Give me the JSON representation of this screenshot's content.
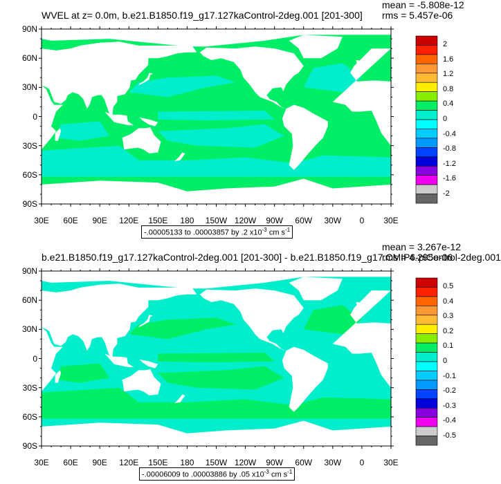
{
  "panels": [
    {
      "title": "WVEL at z=   0.0m, b.e21.B1850.f19_g17.127kaControl-2deg.001 [201-300]",
      "mean": "mean = -5.808e-12",
      "rms": "rms = 5.457e-06",
      "range_text": "-.00005133 to .00003857 by .2 x10",
      "range_exp": "-3",
      "range_unit": " cm s",
      "range_unit_exp": "-1",
      "colorbar_labels": [
        "2",
        "1.6",
        "1.2",
        "0.8",
        "0.4",
        "0",
        "-0.4",
        "-0.8",
        "-1.2",
        "-1.6",
        "-2"
      ],
      "ocean_primary": "#00ee66",
      "ocean_secondary": "#00eecc"
    },
    {
      "title": "b.e21.B1850.f19_g17.127kaControl-2deg.001 [201-300] - b.e21.B1850.f19_g17.CMIP6-piControl-2deg.001",
      "mean": "mean = 3.267e-12",
      "rms": "rms = 4.295e-06",
      "range_text": "-.00006009 to .00003886 by .05 x10",
      "range_exp": "-3",
      "range_unit": " cm s",
      "range_unit_exp": "-1",
      "colorbar_labels": [
        "0.5",
        "0.4",
        "0.3",
        "0.2",
        "0.1",
        "0",
        "-0.1",
        "-0.2",
        "-0.3",
        "-0.4",
        "-0.5"
      ],
      "ocean_primary": "#00eecc",
      "ocean_secondary": "#00ee66"
    }
  ],
  "lat_labels": [
    "90N",
    "60N",
    "30N",
    "0",
    "30S",
    "60S",
    "90S"
  ],
  "lon_labels": [
    "30E",
    "60E",
    "90E",
    "120E",
    "150E",
    "180",
    "150W",
    "120W",
    "90W",
    "60W",
    "30W",
    "0",
    "30E"
  ],
  "colorbar_colors": [
    "#cc0000",
    "#ff2200",
    "#ff6600",
    "#ff9933",
    "#ffbb33",
    "#ffee00",
    "#88ee00",
    "#00ee66",
    "#00eecc",
    "#00ffff",
    "#00ccff",
    "#0099ff",
    "#0044ff",
    "#0000dd",
    "#8800dd",
    "#ee00ee",
    "#cccccc",
    "#666666"
  ]
}
